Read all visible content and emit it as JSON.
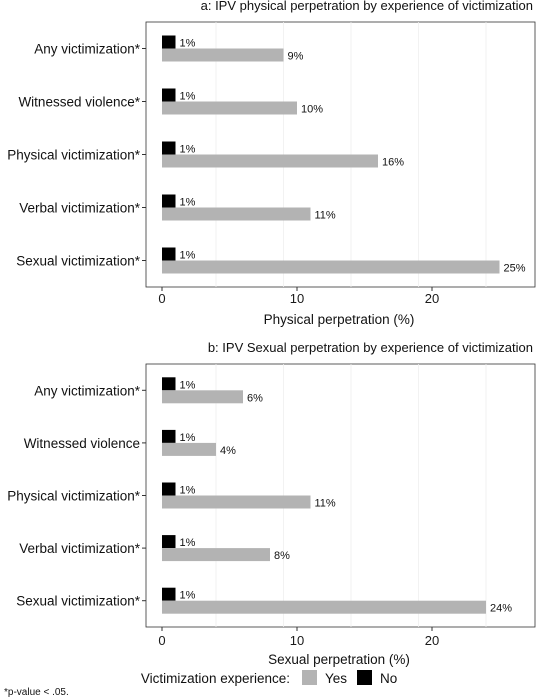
{
  "chart_data": [
    {
      "type": "bar",
      "orientation": "horizontal",
      "title": "a: IPV physical perpetration by experience of victimization",
      "xlabel": "Physical perpetration (%)",
      "ylabel": "",
      "xlim": [
        0,
        27
      ],
      "xticks": [
        "0",
        "10",
        "20"
      ],
      "grid": true,
      "categories": [
        "Any victimization*",
        "Witnessed violence*",
        "Physical victimization*",
        "Verbal victimization*",
        "Sexual victimization*"
      ],
      "series": [
        {
          "name": "No",
          "color": "#000000",
          "values": [
            1,
            1,
            1,
            1,
            1
          ],
          "labels": [
            "1%",
            "1%",
            "1%",
            "1%",
            "1%"
          ]
        },
        {
          "name": "Yes",
          "color": "#b3b3b3",
          "values": [
            9,
            10,
            16,
            11,
            25
          ],
          "labels": [
            "9%",
            "10%",
            "16%",
            "11%",
            "25%"
          ]
        }
      ]
    },
    {
      "type": "bar",
      "orientation": "horizontal",
      "title": "b: IPV Sexual perpetration by experience of victimization",
      "xlabel": "Sexual perpetration (%)",
      "ylabel": "",
      "xlim": [
        0,
        27
      ],
      "xticks": [
        "0",
        "10",
        "20"
      ],
      "grid": true,
      "categories": [
        "Any victimization*",
        "Witnessed violence",
        "Physical victimization*",
        "Verbal victimization*",
        "Sexual victimization*"
      ],
      "series": [
        {
          "name": "No",
          "color": "#000000",
          "values": [
            1,
            1,
            1,
            1,
            1
          ],
          "labels": [
            "1%",
            "1%",
            "1%",
            "1%",
            "1%"
          ]
        },
        {
          "name": "Yes",
          "color": "#b3b3b3",
          "values": [
            6,
            4,
            11,
            8,
            24
          ],
          "labels": [
            "6%",
            "4%",
            "11%",
            "8%",
            "24%"
          ]
        }
      ]
    }
  ],
  "legend": {
    "title": "Victimization experience:",
    "items": [
      {
        "label": "Yes",
        "color": "#b3b3b3"
      },
      {
        "label": "No",
        "color": "#000000"
      }
    ],
    "placement": "bottom"
  },
  "footnote": "*p-value < .05."
}
